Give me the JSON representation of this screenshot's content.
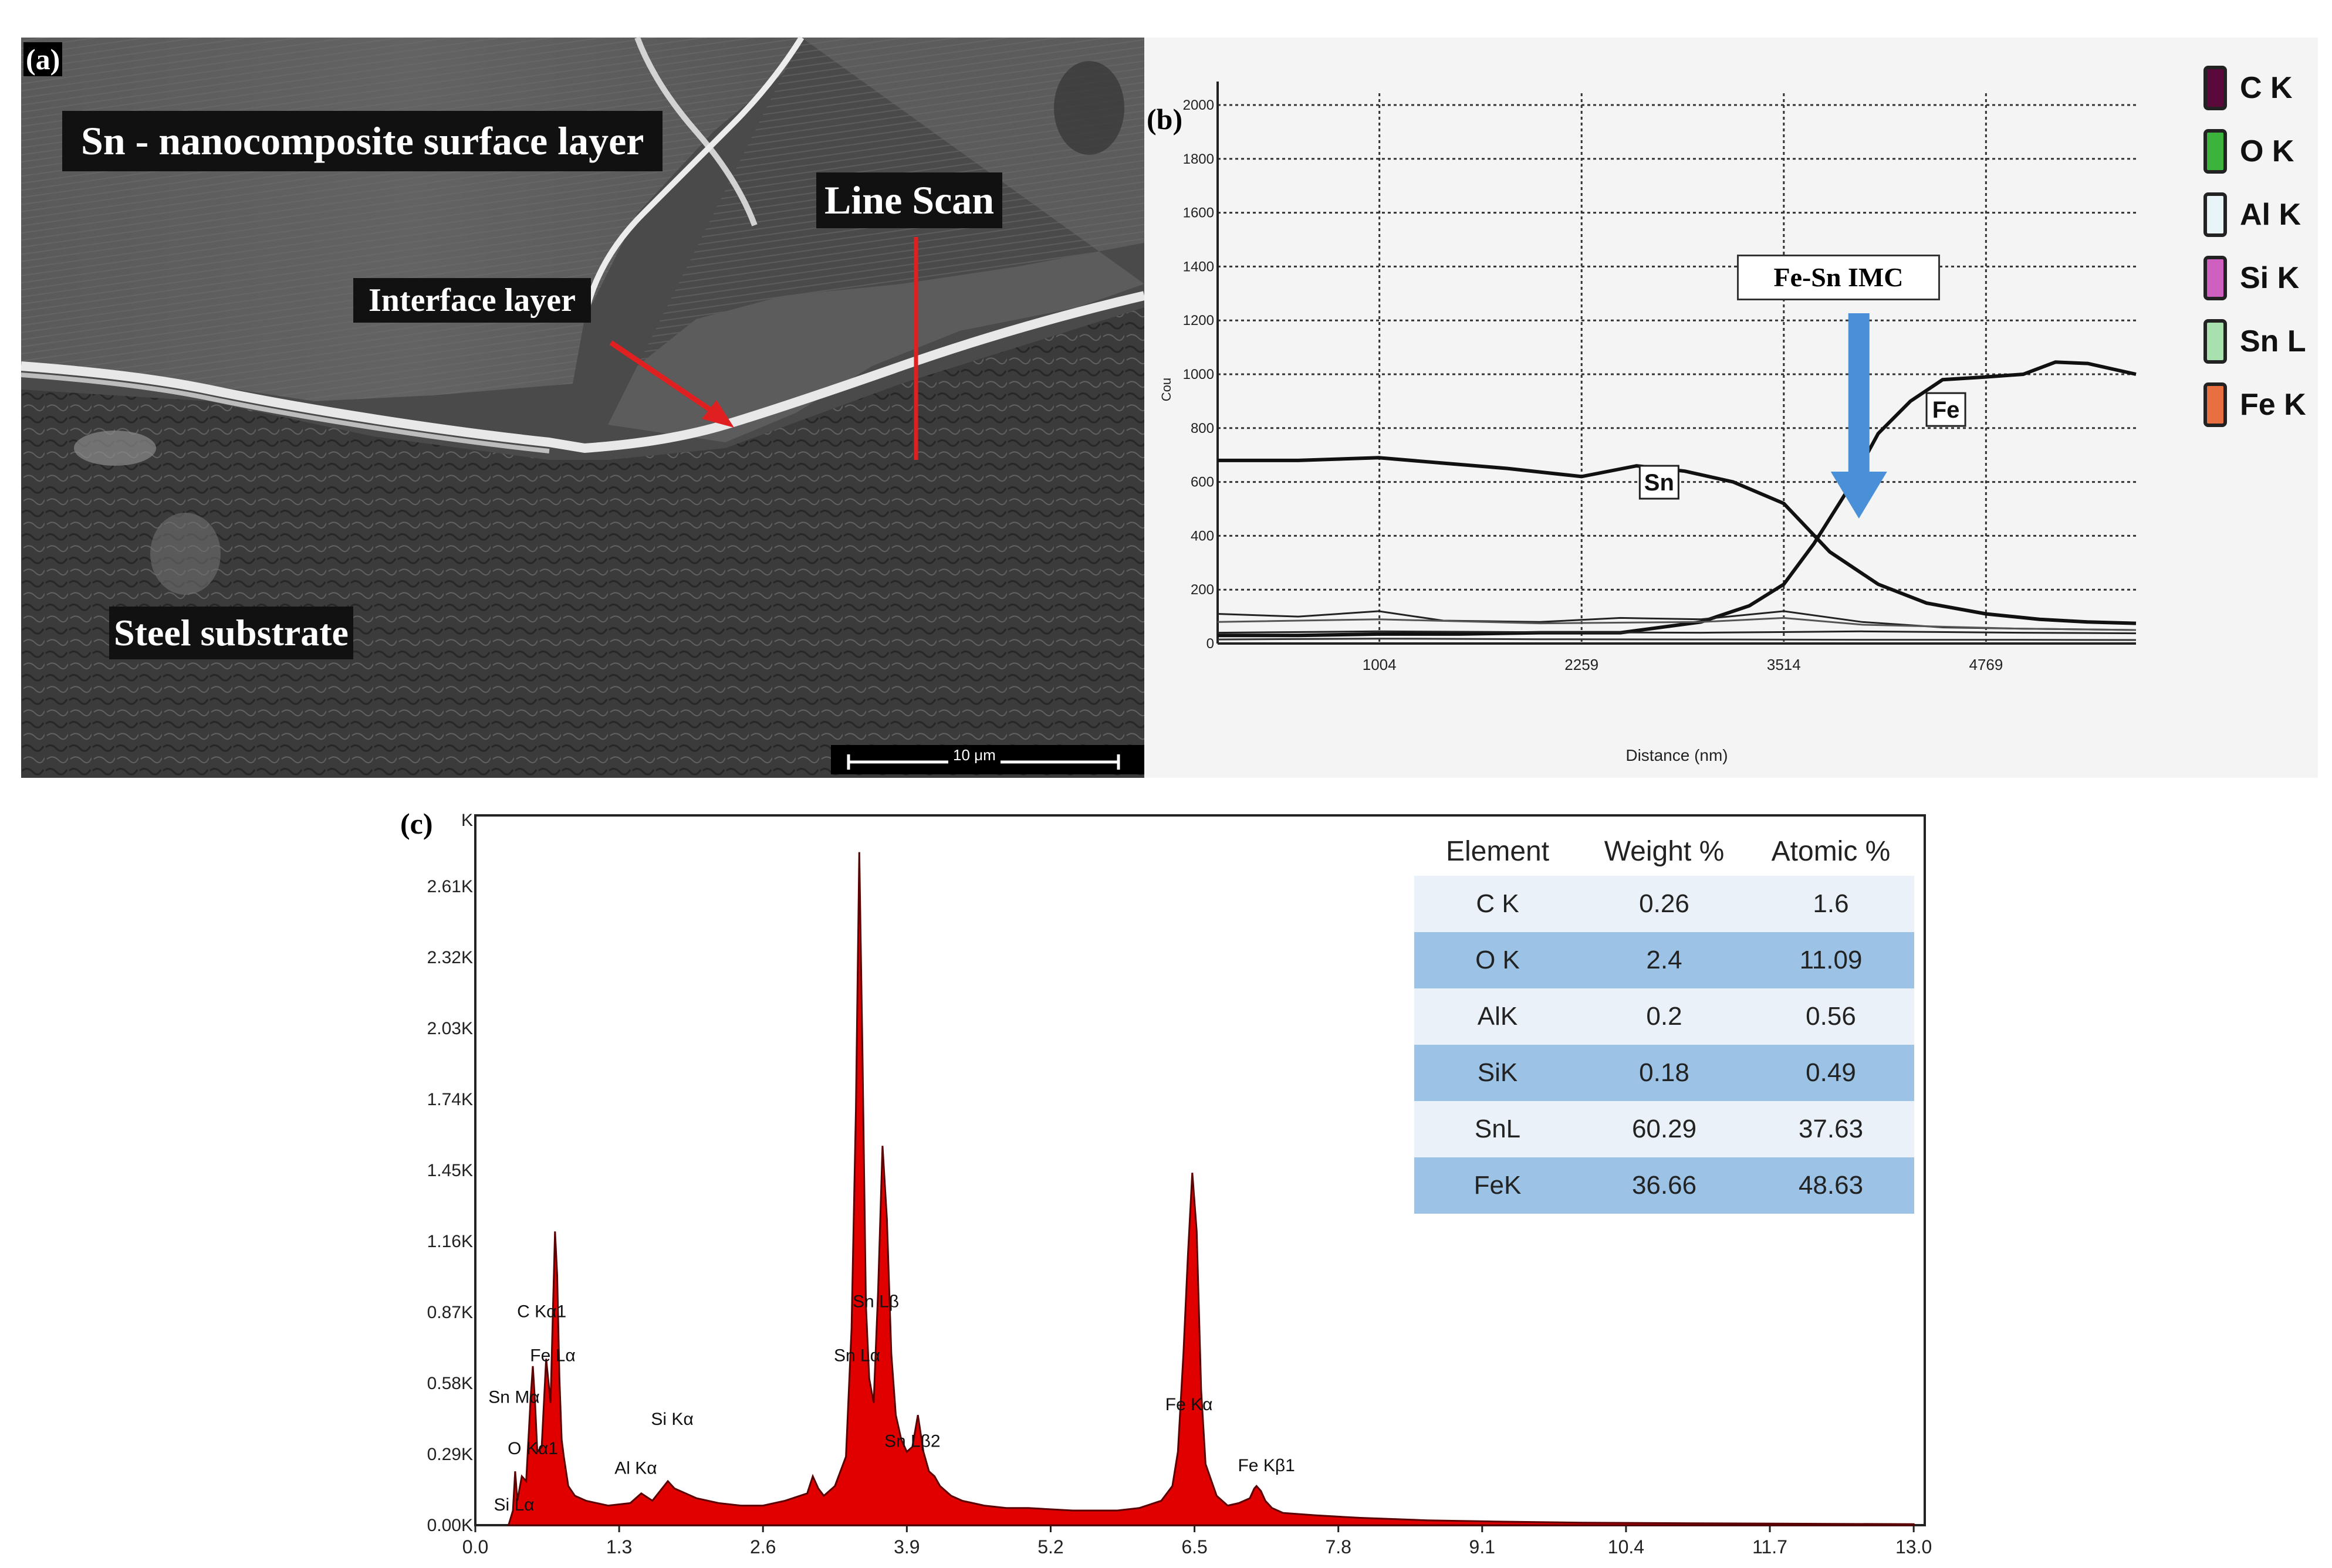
{
  "panel_a": {
    "letter": "(a)",
    "labels": {
      "surface_layer": "Sn - nanocomposite surface layer",
      "line_scan": "Line Scan",
      "interface_layer": "Interface layer",
      "steel_substrate": "Steel substrate"
    },
    "scale_bar": "10 μm",
    "colors": {
      "arrow": "#e02020",
      "label_bg": "#111111"
    }
  },
  "panel_b": {
    "letter": "(b)",
    "annotation_imc": "Fe-Sn IMC",
    "legend": [
      {
        "label": "C K",
        "color": "#5a0a3a"
      },
      {
        "label": "O K",
        "color": "#3cb43c"
      },
      {
        "label": "Al K",
        "color": "#e8f4f8"
      },
      {
        "label": "Si K",
        "color": "#d060c0"
      },
      {
        "label": "Sn L",
        "color": "#a8e0b0"
      },
      {
        "label": "Fe K",
        "color": "#e87040"
      }
    ],
    "colors": {
      "arrow": "#4a90d9"
    }
  },
  "panel_c": {
    "letter": "(c)",
    "table": {
      "headers": [
        "Element",
        "Weight %",
        "Atomic %"
      ],
      "rows": [
        [
          "C K",
          "0.26",
          "1.6"
        ],
        [
          "O K",
          "2.4",
          "11.09"
        ],
        [
          "AlK",
          "0.2",
          "0.56"
        ],
        [
          "SiK",
          "0.18",
          "0.49"
        ],
        [
          "SnL",
          "60.29",
          "37.63"
        ],
        [
          "FeK",
          "36.66",
          "48.63"
        ]
      ]
    },
    "colors": {
      "spectrum": "#e00000",
      "spectrum_dark": "#5a0000"
    }
  },
  "chart_data": [
    {
      "type": "line",
      "panel": "b",
      "xlabel": "Distance (nm)",
      "ylabel": "Cou",
      "xlim": [
        0,
        5700
      ],
      "ylim": [
        0,
        2000
      ],
      "x_ticks": [
        1004,
        2259,
        3514,
        4769
      ],
      "y_ticks": [
        0,
        200,
        400,
        600,
        800,
        1000,
        1200,
        1400,
        1600,
        1800,
        2000
      ],
      "y_tick_labels": [
        "0",
        "200",
        "400",
        "600",
        "800",
        "1000",
        "1200",
        "1400",
        "1600",
        "1800",
        "2000"
      ],
      "grid": true,
      "series": [
        {
          "name": "Sn",
          "x": [
            0,
            500,
            1000,
            1400,
            1800,
            2259,
            2600,
            2900,
            3200,
            3514,
            3800,
            4100,
            4400,
            4769,
            5100,
            5400,
            5700
          ],
          "y": [
            680,
            680,
            690,
            670,
            650,
            620,
            660,
            640,
            600,
            520,
            340,
            220,
            150,
            110,
            90,
            80,
            75
          ]
        },
        {
          "name": "Fe",
          "x": [
            0,
            500,
            1000,
            1500,
            2000,
            2500,
            3000,
            3300,
            3514,
            3700,
            3900,
            4100,
            4300,
            4500,
            4769,
            5000,
            5200,
            5400,
            5700
          ],
          "y": [
            30,
            30,
            35,
            35,
            40,
            40,
            80,
            140,
            220,
            370,
            560,
            780,
            900,
            980,
            990,
            1000,
            1045,
            1040,
            1000
          ]
        },
        {
          "x": [
            0,
            500,
            1000,
            1400,
            2000,
            2500,
            3000,
            3514,
            4000,
            4500,
            5000,
            5700
          ],
          "y": [
            110,
            100,
            120,
            85,
            80,
            95,
            90,
            120,
            80,
            60,
            55,
            50
          ]
        },
        {
          "x": [
            0,
            1000,
            2000,
            3000,
            3514,
            4000,
            5000,
            5700
          ],
          "y": [
            80,
            90,
            75,
            80,
            95,
            70,
            55,
            50
          ]
        },
        {
          "x": [
            0,
            1000,
            2000,
            3000,
            4000,
            5000,
            5700
          ],
          "y": [
            40,
            45,
            42,
            40,
            45,
            40,
            38
          ]
        },
        {
          "x": [
            0,
            1000,
            2000,
            3000,
            4000,
            5000,
            5700
          ],
          "y": [
            15,
            18,
            16,
            15,
            14,
            14,
            13
          ]
        }
      ]
    },
    {
      "type": "area",
      "panel": "c",
      "xlim": [
        0,
        13.1
      ],
      "ylim": [
        0,
        2.9
      ],
      "x_ticks": [
        "0.0",
        "1.3",
        "2.6",
        "3.9",
        "5.2",
        "6.5",
        "7.8",
        "9.1",
        "10.4",
        "11.7",
        "13.0"
      ],
      "y_ticks": [
        0,
        0.29,
        0.58,
        0.87,
        1.16,
        1.45,
        1.74,
        2.03,
        2.32,
        2.61
      ],
      "y_tick_labels": [
        "0.00K",
        "0.29K",
        "0.58K",
        "0.87K",
        "1.16K",
        "1.45K",
        "1.74K",
        "2.03K",
        "2.32K",
        "2.61K"
      ],
      "top_tick_label": "K",
      "x": [
        0.3,
        0.34,
        0.36,
        0.38,
        0.42,
        0.46,
        0.5,
        0.52,
        0.54,
        0.56,
        0.6,
        0.64,
        0.68,
        0.7,
        0.72,
        0.74,
        0.76,
        0.78,
        0.8,
        0.84,
        0.9,
        1.0,
        1.2,
        1.4,
        1.5,
        1.6,
        1.74,
        1.8,
        2.0,
        2.2,
        2.4,
        2.6,
        2.8,
        3.0,
        3.05,
        3.1,
        3.15,
        3.25,
        3.35,
        3.4,
        3.44,
        3.47,
        3.5,
        3.53,
        3.56,
        3.6,
        3.64,
        3.68,
        3.72,
        3.76,
        3.8,
        3.85,
        3.9,
        3.95,
        4.0,
        4.05,
        4.1,
        4.15,
        4.2,
        4.3,
        4.4,
        4.6,
        4.8,
        5.0,
        5.4,
        5.8,
        6.0,
        6.2,
        6.3,
        6.35,
        6.4,
        6.44,
        6.48,
        6.52,
        6.56,
        6.6,
        6.7,
        6.8,
        6.9,
        7.0,
        7.04,
        7.06,
        7.1,
        7.14,
        7.2,
        7.3,
        7.6,
        8.0,
        8.6,
        9.2,
        10.0,
        11.0,
        12.0,
        13.0
      ],
      "y": [
        0.0,
        0.06,
        0.22,
        0.1,
        0.2,
        0.18,
        0.52,
        0.65,
        0.5,
        0.3,
        0.32,
        0.68,
        0.5,
        0.85,
        1.2,
        1.02,
        0.6,
        0.35,
        0.28,
        0.16,
        0.12,
        0.1,
        0.08,
        0.09,
        0.13,
        0.1,
        0.18,
        0.15,
        0.11,
        0.09,
        0.08,
        0.08,
        0.1,
        0.13,
        0.2,
        0.15,
        0.12,
        0.16,
        0.28,
        0.8,
        1.7,
        2.75,
        1.9,
        0.9,
        0.6,
        0.5,
        0.95,
        1.55,
        1.25,
        0.7,
        0.45,
        0.35,
        0.3,
        0.32,
        0.45,
        0.3,
        0.22,
        0.2,
        0.16,
        0.12,
        0.1,
        0.08,
        0.07,
        0.07,
        0.06,
        0.06,
        0.07,
        0.1,
        0.16,
        0.3,
        0.7,
        1.1,
        1.44,
        1.2,
        0.55,
        0.25,
        0.12,
        0.08,
        0.09,
        0.11,
        0.15,
        0.16,
        0.14,
        0.1,
        0.07,
        0.05,
        0.04,
        0.03,
        0.02,
        0.015,
        0.01,
        0.008,
        0.006,
        0.004
      ],
      "peak_labels": [
        {
          "text": "Sn Mα",
          "x": 0.35,
          "y": 0.5
        },
        {
          "text": "O  Kα1",
          "x": 0.52,
          "y": 0.29
        },
        {
          "text": "Si Lα",
          "x": 0.35,
          "y": 0.06
        },
        {
          "text": "C  Kα1",
          "x": 0.6,
          "y": 0.85
        },
        {
          "text": "Fe Lα",
          "x": 0.7,
          "y": 0.67
        },
        {
          "text": "Al Kα",
          "x": 1.45,
          "y": 0.21
        },
        {
          "text": "Si Kα",
          "x": 1.78,
          "y": 0.41
        },
        {
          "text": "Sn Lβ",
          "x": 3.62,
          "y": 0.89
        },
        {
          "text": "Sn Lα",
          "x": 3.45,
          "y": 0.67
        },
        {
          "text": "Sn Lβ2",
          "x": 3.95,
          "y": 0.32
        },
        {
          "text": "Fe Kα",
          "x": 6.45,
          "y": 0.47
        },
        {
          "text": "Fe Kβ1",
          "x": 7.15,
          "y": 0.22
        }
      ]
    }
  ]
}
